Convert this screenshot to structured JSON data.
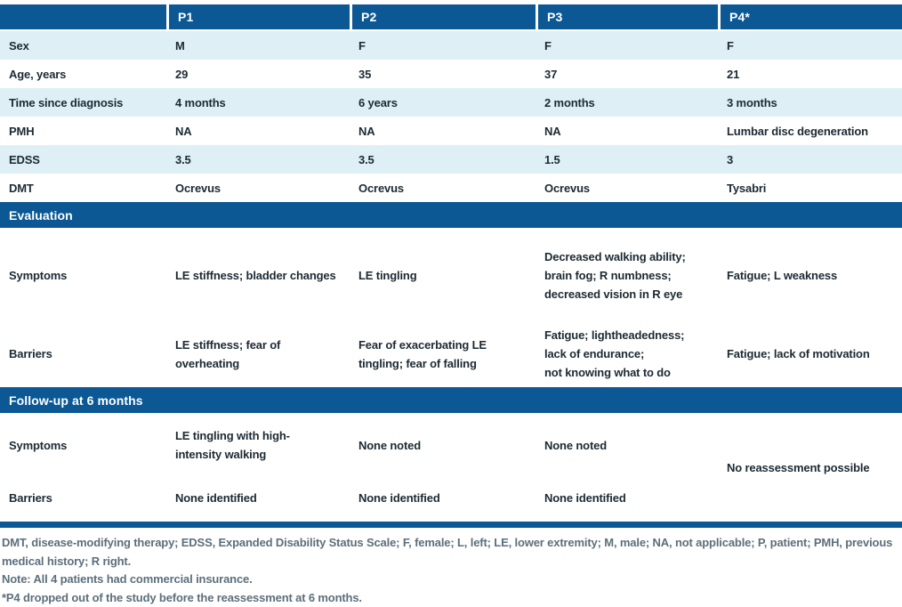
{
  "colors": {
    "header_blue": "#0c5894",
    "row_stripe_light_blue": "#def0f6",
    "cell_text": "#1c2a33",
    "footnote_gray": "#5c6f7b"
  },
  "header": {
    "columns": [
      "",
      "P1",
      "P2",
      "P3",
      "P4*"
    ]
  },
  "demographics": [
    {
      "label": "Sex",
      "values": [
        "M",
        "F",
        "F",
        "F"
      ]
    },
    {
      "label": "Age, years",
      "values": [
        "29",
        "35",
        "37",
        "21"
      ]
    },
    {
      "label": "Time since diagnosis",
      "values": [
        "4 months",
        "6 years",
        "2 months",
        "3 months"
      ]
    },
    {
      "label": "PMH",
      "values": [
        "NA",
        "NA",
        "NA",
        "Lumbar disc degeneration"
      ]
    },
    {
      "label": "EDSS",
      "values": [
        "3.5",
        "3.5",
        "1.5",
        "3"
      ]
    },
    {
      "label": "DMT",
      "values": [
        "Ocrevus",
        "Ocrevus",
        "Ocrevus",
        "Tysabri"
      ]
    }
  ],
  "evaluation": {
    "section_label": "Evaluation",
    "symptoms": {
      "label": "Symptoms",
      "values": [
        "LE stiffness; bladder changes",
        "LE tingling",
        "Decreased walking ability;\nbrain fog; R numbness;\ndecreased vision in R eye",
        "Fatigue; L weakness"
      ]
    },
    "barriers": {
      "label": "Barriers",
      "values": [
        "LE stiffness; fear of\noverheating",
        "Fear of exacerbating LE\ntingling; fear of falling",
        "Fatigue; lightheadedness;\nlack of endurance;\nnot knowing what to do",
        "Fatigue; lack of motivation"
      ]
    }
  },
  "followup": {
    "section_label": "Follow-up at 6 months",
    "symptoms": {
      "label": "Symptoms",
      "values": [
        "LE tingling with high-\nintensity walking",
        "None noted",
        "None noted"
      ]
    },
    "barriers": {
      "label": "Barriers",
      "values": [
        "None identified",
        "None identified",
        "None identified"
      ]
    },
    "p4_note": "No reassessment possible"
  },
  "footnotes": {
    "abbreviations": "DMT, disease-modifying therapy; EDSS, Expanded Disability Status Scale; F, female; L, left; LE, lower extremity; M, male; NA, not applicable; P, patient; PMH, previous\nmedical history; R right.",
    "note": "Note: All 4 patients had commercial insurance.",
    "asterisk": "*P4 dropped out of the study before the reassessment at 6 months."
  }
}
